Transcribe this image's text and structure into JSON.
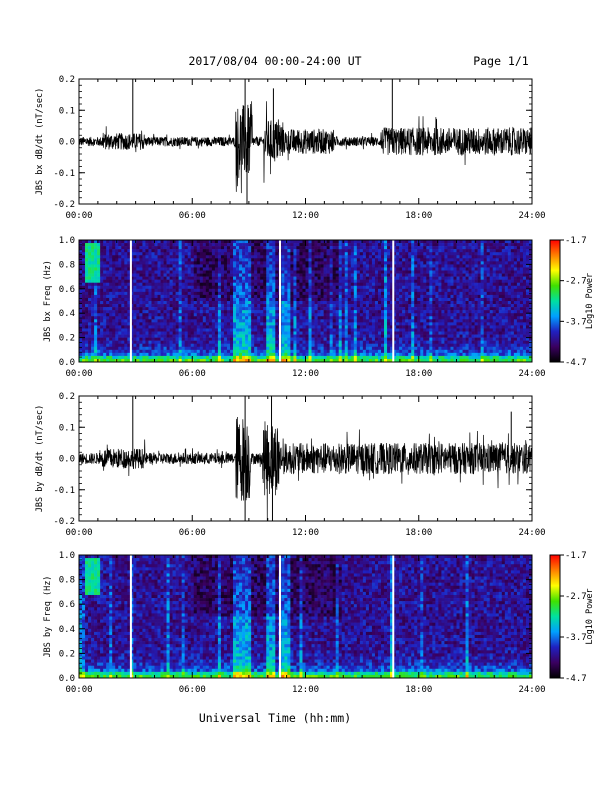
{
  "header": {
    "date_title": "2017/08/04  00:00-24:00 UT",
    "page": "Page 1/1"
  },
  "common": {
    "xlabel": "Universal Time (hh:mm)",
    "x_ticks": [
      "00:00",
      "06:00",
      "12:00",
      "18:00",
      "24:00"
    ],
    "x_range_hours": [
      0,
      24
    ]
  },
  "colorbar": {
    "label": "Log10 Power",
    "ticks": [
      "-1.7",
      "-2.7",
      "-3.7",
      "-4.7"
    ],
    "range": [
      -4.7,
      -1.7
    ],
    "colors": [
      "#000000",
      "#3a0060",
      "#2020c0",
      "#00a0ff",
      "#00e0a0",
      "#40e000",
      "#ffff00",
      "#ff8000",
      "#ff0000"
    ]
  },
  "chart_data": [
    {
      "type": "line",
      "ylabel": "JBS bx dB/dt (nT/sec)",
      "y_range": [
        -0.2,
        0.2
      ],
      "y_ticks": [
        "0.2",
        "0.1",
        "0.0",
        "-0.1",
        "-0.2"
      ],
      "baseline_amplitude": 0.015,
      "white_gaps_hours": [],
      "spikes": [
        {
          "t": 2.85,
          "y": 0.21
        },
        {
          "t": 8.8,
          "y": 0.21
        },
        {
          "t": 8.9,
          "y": -0.2
        },
        {
          "t": 10.3,
          "y": 0.17
        },
        {
          "t": 16.6,
          "y": 0.21
        }
      ],
      "activity": [
        {
          "t0": 8.3,
          "t1": 9.2,
          "amp": 0.12
        },
        {
          "t0": 9.8,
          "t1": 10.8,
          "amp": 0.07
        },
        {
          "t0": 10.8,
          "t1": 13.5,
          "amp": 0.04
        },
        {
          "t0": 16.0,
          "t1": 24.0,
          "amp": 0.045
        }
      ]
    },
    {
      "type": "heatmap",
      "ylabel": "JBS bx Freq (Hz)",
      "y_range": [
        0.0,
        1.0
      ],
      "y_ticks": [
        "1.0",
        "0.8",
        "0.6",
        "0.4",
        "0.2",
        "0.0"
      ],
      "white_lines_hours": [
        2.75,
        10.65,
        16.65
      ],
      "bright_patch": {
        "t0": 0.4,
        "t1": 1.1,
        "f0": 0.65,
        "f1": 0.98
      },
      "strong_times_hours": [
        8.35,
        8.85,
        10.2,
        11.0
      ]
    },
    {
      "type": "line",
      "ylabel": "JBS by dB/dt (nT/sec)",
      "y_range": [
        -0.2,
        0.2
      ],
      "y_ticks": [
        "0.2",
        "0.1",
        "0.0",
        "-0.1",
        "-0.2"
      ],
      "baseline_amplitude": 0.018,
      "white_gaps_hours": [],
      "spikes": [
        {
          "t": 2.85,
          "y": 0.21
        },
        {
          "t": 8.8,
          "y": 0.2
        },
        {
          "t": 8.8,
          "y": -0.2
        },
        {
          "t": 10.2,
          "y": 0.2
        },
        {
          "t": 10.25,
          "y": -0.2
        },
        {
          "t": 22.9,
          "y": 0.15
        }
      ],
      "activity": [
        {
          "t0": 8.3,
          "t1": 9.1,
          "amp": 0.14
        },
        {
          "t0": 9.7,
          "t1": 10.6,
          "amp": 0.12
        },
        {
          "t0": 10.6,
          "t1": 14.0,
          "amp": 0.05
        },
        {
          "t0": 14.0,
          "t1": 24.0,
          "amp": 0.05
        }
      ]
    },
    {
      "type": "heatmap",
      "ylabel": "JBS by Freq (Hz)",
      "y_range": [
        0.0,
        1.0
      ],
      "y_ticks": [
        "1.0",
        "0.8",
        "0.6",
        "0.4",
        "0.2",
        "0.0"
      ],
      "white_lines_hours": [
        2.75,
        10.65,
        16.65
      ],
      "bright_patch": {
        "t0": 0.4,
        "t1": 1.2,
        "f0": 0.68,
        "f1": 0.98
      },
      "strong_times_hours": [
        8.35,
        8.85,
        10.2,
        11.0
      ]
    }
  ]
}
